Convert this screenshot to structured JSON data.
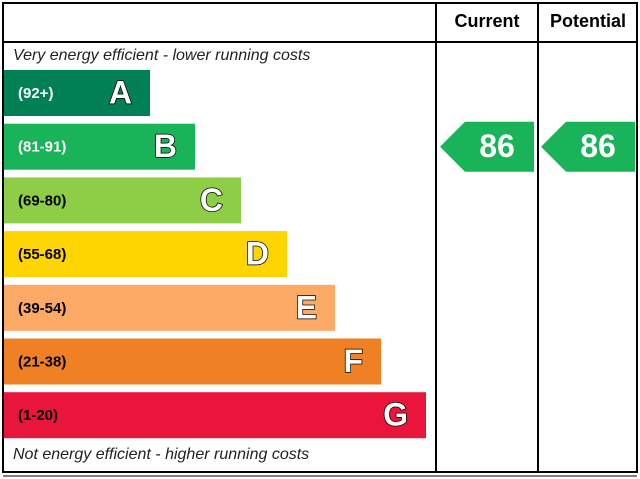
{
  "header": {
    "current": "Current",
    "potential": "Potential"
  },
  "top_note": "Very energy efficient - lower running costs",
  "bottom_note": "Not energy efficient - higher running costs",
  "bands": [
    {
      "range": "(92+)",
      "letter": "A",
      "color": "#008054",
      "label_color": "#ffffff"
    },
    {
      "range": "(81-91)",
      "letter": "B",
      "color": "#19b459",
      "label_color": "#ffffff"
    },
    {
      "range": "(69-80)",
      "letter": "C",
      "color": "#8dce46",
      "label_color": "#000000"
    },
    {
      "range": "(55-68)",
      "letter": "D",
      "color": "#ffd500",
      "label_color": "#000000"
    },
    {
      "range": "(39-54)",
      "letter": "E",
      "color": "#fcaa65",
      "label_color": "#000000"
    },
    {
      "range": "(21-38)",
      "letter": "F",
      "color": "#ef8023",
      "label_color": "#000000"
    },
    {
      "range": "(1-20)",
      "letter": "G",
      "color": "#e9153b",
      "label_color": "#000000"
    }
  ],
  "current": 86,
  "potential": 86
}
